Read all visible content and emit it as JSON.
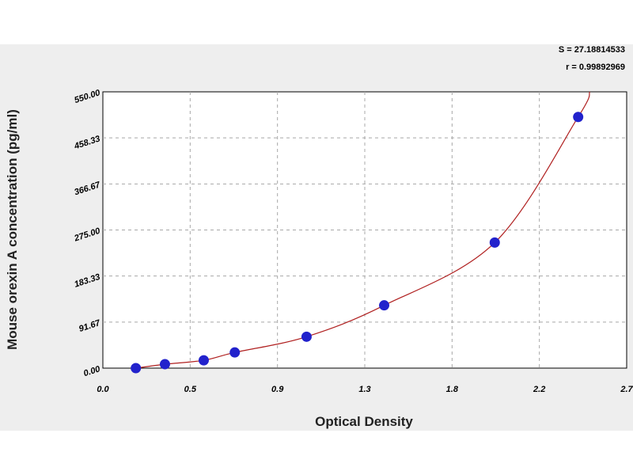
{
  "chart_data": {
    "type": "scatter",
    "title": "",
    "xlabel": "Optical Density",
    "ylabel": "Mouse orexin A concentration (pg/ml)",
    "xlim": [
      0.0,
      2.7
    ],
    "ylim": [
      0,
      550
    ],
    "x_ticks": [
      "0.0",
      "0.5",
      "0.9",
      "1.3",
      "1.8",
      "2.2",
      "2.7"
    ],
    "x_tick_values": [
      0.0,
      0.45,
      0.9,
      1.35,
      1.8,
      2.25,
      2.7
    ],
    "y_ticks": [
      "0.00",
      "91.67",
      "183.33",
      "275.00",
      "366.67",
      "458.33",
      "550.00"
    ],
    "y_tick_values": [
      0,
      91.67,
      183.33,
      275.0,
      366.67,
      458.33,
      550.0
    ],
    "grid": true,
    "series": [
      {
        "values": [
          {
            "x": 0.17,
            "y": 0
          },
          {
            "x": 0.32,
            "y": 7.8
          },
          {
            "x": 0.52,
            "y": 15.6
          },
          {
            "x": 0.68,
            "y": 31.25
          },
          {
            "x": 1.05,
            "y": 62.5
          },
          {
            "x": 1.45,
            "y": 125
          },
          {
            "x": 2.02,
            "y": 250
          },
          {
            "x": 2.45,
            "y": 500
          }
        ],
        "color": "#2222cc"
      }
    ],
    "fit_curve": {
      "color": "#b02020",
      "values": [
        {
          "x": 0.17,
          "y": 0
        },
        {
          "x": 0.32,
          "y": 7.8
        },
        {
          "x": 0.52,
          "y": 15.6
        },
        {
          "x": 0.68,
          "y": 31.25
        },
        {
          "x": 1.05,
          "y": 62.5
        },
        {
          "x": 1.45,
          "y": 125
        },
        {
          "x": 2.02,
          "y": 250
        },
        {
          "x": 2.45,
          "y": 500
        },
        {
          "x": 2.51,
          "y": 550
        }
      ]
    },
    "annotations": {
      "s_text": "S = 27.18814533",
      "r_text": "r = 0.99892969"
    }
  }
}
